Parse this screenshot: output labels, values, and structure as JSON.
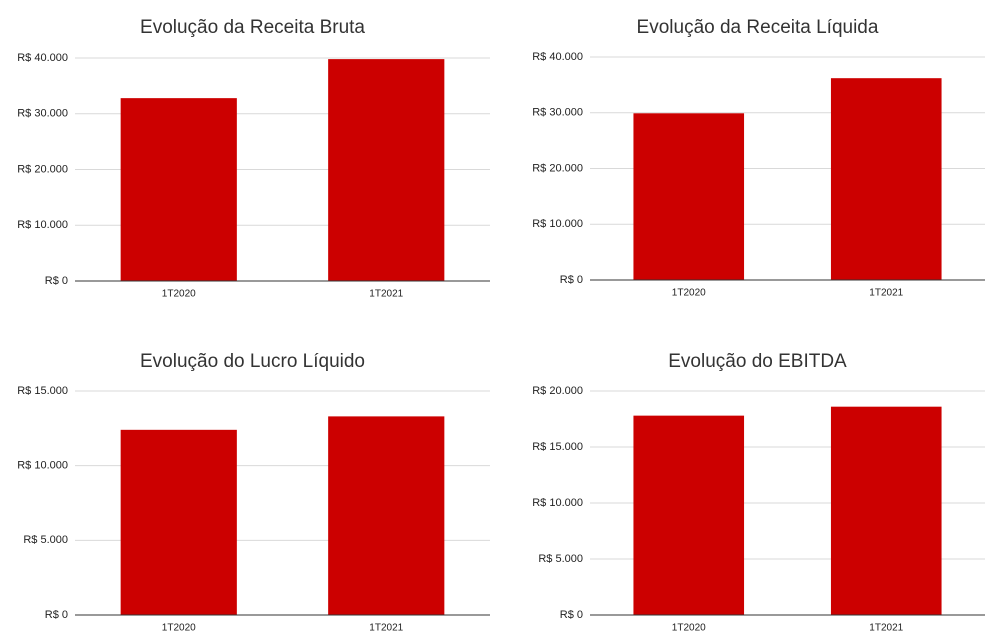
{
  "chart_data": [
    {
      "type": "bar",
      "title": "Evolução da Receita Bruta",
      "categories": [
        "1T2020",
        "1T2021"
      ],
      "values": [
        32800,
        39800
      ],
      "color": "#cc0000",
      "ylim": [
        0,
        40000
      ],
      "yticks": [
        {
          "value": 0,
          "label": "R$ 0"
        },
        {
          "value": 10000,
          "label": "R$ 10.000"
        },
        {
          "value": 20000,
          "label": "R$ 20.000"
        },
        {
          "value": 30000,
          "label": "R$ 30.000"
        },
        {
          "value": 40000,
          "label": "R$ 40.000"
        }
      ],
      "grid": true
    },
    {
      "type": "bar",
      "title": "Evolução da Receita Líquida",
      "categories": [
        "1T2020",
        "1T2021"
      ],
      "values": [
        29900,
        36200
      ],
      "color": "#cc0000",
      "ylim": [
        0,
        40000
      ],
      "yticks": [
        {
          "value": 0,
          "label": "R$ 0"
        },
        {
          "value": 10000,
          "label": "R$ 10.000"
        },
        {
          "value": 20000,
          "label": "R$ 20.000"
        },
        {
          "value": 30000,
          "label": "R$ 30.000"
        },
        {
          "value": 40000,
          "label": "R$ 40.000"
        }
      ],
      "grid": true
    },
    {
      "type": "bar",
      "title": "Evolução do Lucro Líquido",
      "categories": [
        "1T2020",
        "1T2021"
      ],
      "values": [
        12400,
        13300
      ],
      "color": "#cc0000",
      "ylim": [
        0,
        15000
      ],
      "yticks": [
        {
          "value": 0,
          "label": "R$ 0"
        },
        {
          "value": 5000,
          "label": "R$ 5.000"
        },
        {
          "value": 10000,
          "label": "R$ 10.000"
        },
        {
          "value": 15000,
          "label": "R$ 15.000"
        }
      ],
      "grid": true
    },
    {
      "type": "bar",
      "title": "Evolução do EBITDA",
      "categories": [
        "1T2020",
        "1T2021"
      ],
      "values": [
        17800,
        18600
      ],
      "color": "#cc0000",
      "ylim": [
        0,
        20000
      ],
      "yticks": [
        {
          "value": 0,
          "label": "R$ 0"
        },
        {
          "value": 5000,
          "label": "R$ 5.000"
        },
        {
          "value": 10000,
          "label": "R$ 10.000"
        },
        {
          "value": 15000,
          "label": "R$ 15.000"
        },
        {
          "value": 20000,
          "label": "R$ 20.000"
        }
      ],
      "grid": true
    }
  ]
}
